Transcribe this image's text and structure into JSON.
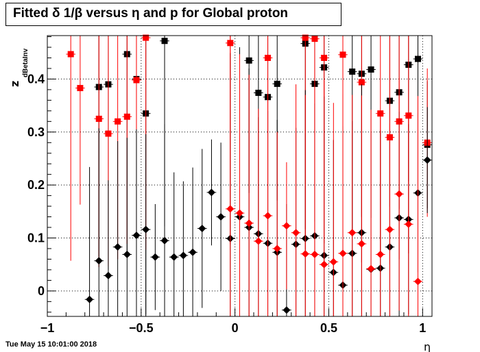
{
  "chart_data": {
    "type": "scatter",
    "title": "Fitted δ 1/β versus η and p for Global proton",
    "xlabel": "η",
    "ylabel": "z",
    "ylabel_sub": "dBetaInv",
    "xlim": [
      -1,
      1.05
    ],
    "ylim": [
      -0.048,
      0.482
    ],
    "x_ticks": [
      -1,
      -0.5,
      0,
      0.5,
      1
    ],
    "x_tick_labels": [
      "−1",
      "−0.5",
      "0",
      "0.5",
      "1"
    ],
    "y_ticks": [
      0,
      0.1,
      0.2,
      0.3,
      0.4
    ],
    "y_tick_labels": [
      "0",
      "0.1",
      "0.2",
      "0.3",
      "0.4"
    ],
    "grid": true,
    "x_bin_half_width": 0.025,
    "series": [
      {
        "color": "#000000",
        "marker": "square",
        "points": [
          {
            "x": -0.725,
            "y": 0.385,
            "err": 0.32
          },
          {
            "x": -0.675,
            "y": 0.39,
            "err": 0.35
          },
          {
            "x": -0.575,
            "y": 0.447,
            "err": 0.38
          },
          {
            "x": -0.525,
            "y": 0.4,
            "err": 0.3
          },
          {
            "x": -0.475,
            "y": 0.335,
            "err": 0.38
          },
          {
            "x": -0.375,
            "y": 0.472,
            "err": 0.35
          },
          {
            "x": 0.075,
            "y": 0.435,
            "err": 0.25
          },
          {
            "x": 0.125,
            "y": 0.374,
            "err": 0.27
          },
          {
            "x": 0.175,
            "y": 0.366,
            "err": 0.22
          },
          {
            "x": 0.225,
            "y": 0.391,
            "err": 0.22
          },
          {
            "x": 0.375,
            "y": 0.467,
            "err": 0.35
          },
          {
            "x": 0.425,
            "y": 0.391,
            "err": 0.26
          },
          {
            "x": 0.475,
            "y": 0.422,
            "err": 0.22
          },
          {
            "x": 0.625,
            "y": 0.414,
            "err": 0.3
          },
          {
            "x": 0.675,
            "y": 0.41,
            "err": 0.27
          },
          {
            "x": 0.725,
            "y": 0.418,
            "err": 0.28
          },
          {
            "x": 0.825,
            "y": 0.359,
            "err": 0.2
          },
          {
            "x": 0.875,
            "y": 0.375,
            "err": 0.22
          },
          {
            "x": 0.925,
            "y": 0.427,
            "err": 0.22
          },
          {
            "x": 0.975,
            "y": 0.438,
            "err": 0.24
          },
          {
            "x": 1.025,
            "y": 0.276,
            "err": 0.12
          }
        ]
      },
      {
        "color": "#ff0000",
        "marker": "square",
        "points": [
          {
            "x": -0.875,
            "y": 0.447,
            "err": 0.39
          },
          {
            "x": -0.825,
            "y": 0.383,
            "err": 0.22
          },
          {
            "x": -0.725,
            "y": 0.325,
            "err": 0.28
          },
          {
            "x": -0.675,
            "y": 0.297,
            "err": 0.25
          },
          {
            "x": -0.625,
            "y": 0.32,
            "err": 0.26
          },
          {
            "x": -0.575,
            "y": 0.329,
            "err": 0.24
          },
          {
            "x": -0.525,
            "y": 0.398,
            "err": 0.3
          },
          {
            "x": -0.475,
            "y": 0.478,
            "err": 0.4
          },
          {
            "x": -0.025,
            "y": 0.468,
            "err": 0.38
          },
          {
            "x": 0.175,
            "y": 0.44,
            "err": 0.36
          },
          {
            "x": 0.375,
            "y": 0.478,
            "err": 0.4
          },
          {
            "x": 0.425,
            "y": 0.476,
            "err": 0.4
          },
          {
            "x": 0.475,
            "y": 0.44,
            "err": 0.35
          },
          {
            "x": 0.575,
            "y": 0.446,
            "err": 0.38
          },
          {
            "x": 0.675,
            "y": 0.394,
            "err": 0.34
          },
          {
            "x": 0.775,
            "y": 0.335,
            "err": 0.27
          },
          {
            "x": 0.825,
            "y": 0.29,
            "err": 0.24
          },
          {
            "x": 0.875,
            "y": 0.32,
            "err": 0.26
          },
          {
            "x": 0.925,
            "y": 0.331,
            "err": 0.26
          },
          {
            "x": 1.025,
            "y": 0.28,
            "err": 0.14
          }
        ]
      },
      {
        "color": "#000000",
        "marker": "diamond",
        "points": [
          {
            "x": -0.775,
            "y": -0.016,
            "err": 0.25
          },
          {
            "x": -0.725,
            "y": 0.057,
            "err": 0.25
          },
          {
            "x": -0.675,
            "y": 0.029,
            "err": 0.18
          },
          {
            "x": -0.625,
            "y": 0.083,
            "err": 0.2
          },
          {
            "x": -0.575,
            "y": 0.069,
            "err": 0.22
          },
          {
            "x": -0.525,
            "y": 0.105,
            "err": 0.2
          },
          {
            "x": -0.475,
            "y": 0.116,
            "err": 0.18
          },
          {
            "x": -0.425,
            "y": 0.064,
            "err": 0.1
          },
          {
            "x": -0.375,
            "y": 0.095,
            "err": 0.22
          },
          {
            "x": -0.325,
            "y": 0.064,
            "err": 0.16
          },
          {
            "x": -0.275,
            "y": 0.067,
            "err": 0.14
          },
          {
            "x": -0.225,
            "y": 0.073,
            "err": 0.16
          },
          {
            "x": -0.175,
            "y": 0.118,
            "err": 0.15
          },
          {
            "x": -0.125,
            "y": 0.186,
            "err": 0.1
          },
          {
            "x": -0.075,
            "y": 0.14,
            "err": 0.14
          },
          {
            "x": -0.025,
            "y": 0.099,
            "err": 0.35
          },
          {
            "x": 0.025,
            "y": 0.14,
            "err": 0.32
          },
          {
            "x": 0.075,
            "y": 0.12,
            "err": 0.3
          },
          {
            "x": 0.125,
            "y": 0.108,
            "err": 0.22
          },
          {
            "x": 0.175,
            "y": 0.09,
            "err": 0.25
          },
          {
            "x": 0.225,
            "y": 0.073,
            "err": 0.25
          },
          {
            "x": 0.275,
            "y": -0.036,
            "err": 0.2
          },
          {
            "x": 0.325,
            "y": 0.088,
            "err": 0.22
          },
          {
            "x": 0.375,
            "y": 0.099,
            "err": 0.28
          },
          {
            "x": 0.425,
            "y": 0.104,
            "err": 0.25
          },
          {
            "x": 0.475,
            "y": 0.067,
            "err": 0.3
          },
          {
            "x": 0.525,
            "y": 0.035,
            "err": 0.25
          },
          {
            "x": 0.575,
            "y": 0.011,
            "err": 0.3
          },
          {
            "x": 0.625,
            "y": 0.071,
            "err": 0.25
          },
          {
            "x": 0.675,
            "y": 0.11,
            "err": 0.28
          },
          {
            "x": 0.725,
            "y": 0.041,
            "err": 0.26
          },
          {
            "x": 0.775,
            "y": 0.043,
            "err": 0.26
          },
          {
            "x": 0.825,
            "y": 0.083,
            "err": 0.2
          },
          {
            "x": 0.875,
            "y": 0.138,
            "err": 0.2
          },
          {
            "x": 0.925,
            "y": 0.135,
            "err": 0.18
          },
          {
            "x": 0.975,
            "y": 0.185,
            "err": 0.15
          },
          {
            "x": 1.025,
            "y": 0.247,
            "err": 0.1
          }
        ]
      },
      {
        "color": "#ff0000",
        "marker": "diamond",
        "points": [
          {
            "x": -0.025,
            "y": 0.155,
            "err": 0.35
          },
          {
            "x": 0.025,
            "y": 0.147,
            "err": 0.3
          },
          {
            "x": 0.075,
            "y": 0.128,
            "err": 0.28
          },
          {
            "x": 0.125,
            "y": 0.094,
            "err": 0.25
          },
          {
            "x": 0.175,
            "y": 0.142,
            "err": 0.26
          },
          {
            "x": 0.225,
            "y": 0.08,
            "err": 0.22
          },
          {
            "x": 0.275,
            "y": 0.123,
            "err": 0.12
          },
          {
            "x": 0.325,
            "y": 0.11,
            "err": 0.28
          },
          {
            "x": 0.375,
            "y": 0.07,
            "err": 0.3
          },
          {
            "x": 0.425,
            "y": 0.069,
            "err": 0.32
          },
          {
            "x": 0.475,
            "y": 0.05,
            "err": 0.35
          },
          {
            "x": 0.525,
            "y": 0.055,
            "err": 0.3
          },
          {
            "x": 0.575,
            "y": 0.071,
            "err": 0.3
          },
          {
            "x": 0.625,
            "y": 0.11,
            "err": 0.26
          },
          {
            "x": 0.675,
            "y": 0.089,
            "err": 0.28
          },
          {
            "x": 0.725,
            "y": 0.042,
            "err": 0.3
          },
          {
            "x": 0.775,
            "y": 0.069,
            "err": 0.26
          },
          {
            "x": 0.825,
            "y": 0.116,
            "err": 0.2
          },
          {
            "x": 0.875,
            "y": 0.183,
            "err": 0.22
          },
          {
            "x": 0.925,
            "y": 0.126,
            "err": 0.2
          },
          {
            "x": 0.975,
            "y": 0.018,
            "err": 0.35
          }
        ]
      }
    ]
  },
  "footer": {
    "date_stamp": "Tue May 15 10:01:00 2018"
  }
}
